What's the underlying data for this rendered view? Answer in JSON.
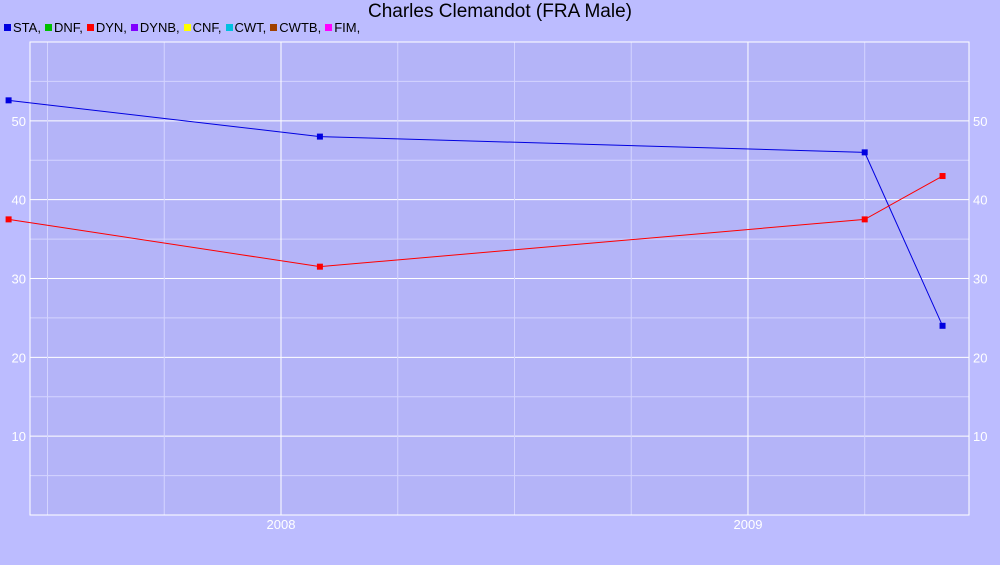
{
  "chart_data": {
    "type": "line",
    "title": "Charles Clemandot (FRA Male)",
    "xlabel": "",
    "ylabel": "",
    "legend_position": "top-left",
    "grid": true,
    "legend": [
      {
        "name": "STA",
        "label": "STA,",
        "color": "#0000e0"
      },
      {
        "name": "DNF",
        "label": "DNF,",
        "color": "#00c000"
      },
      {
        "name": "DYN",
        "label": "DYN,",
        "color": "#ff0000"
      },
      {
        "name": "DYNB",
        "label": "DYNB,",
        "color": "#8000ff"
      },
      {
        "name": "CNF",
        "label": "CNF,",
        "color": "#ffff00"
      },
      {
        "name": "CWT",
        "label": "CWT,",
        "color": "#00c0e0"
      },
      {
        "name": "CWTB",
        "label": "CWTB,",
        "color": "#a04000"
      },
      {
        "name": "FIM",
        "label": "FIM,",
        "color": "#ff00ff"
      }
    ],
    "x_ticks": [
      "2008",
      "2009"
    ],
    "y_ticks": [
      10,
      20,
      30,
      40,
      50
    ],
    "ylim": [
      0,
      60
    ],
    "series": [
      {
        "name": "STA",
        "color": "#0000e0",
        "points": [
          [
            "2007-06",
            52.6
          ],
          [
            "2008-02",
            48.0
          ],
          [
            "2009-04",
            46.0
          ],
          [
            "2009-06",
            24.0
          ]
        ]
      },
      {
        "name": "DYN",
        "color": "#ff0000",
        "points": [
          [
            "2007-06",
            37.5
          ],
          [
            "2008-02",
            31.5
          ],
          [
            "2009-04",
            37.5
          ],
          [
            "2009-06",
            43.0
          ]
        ]
      }
    ]
  }
}
